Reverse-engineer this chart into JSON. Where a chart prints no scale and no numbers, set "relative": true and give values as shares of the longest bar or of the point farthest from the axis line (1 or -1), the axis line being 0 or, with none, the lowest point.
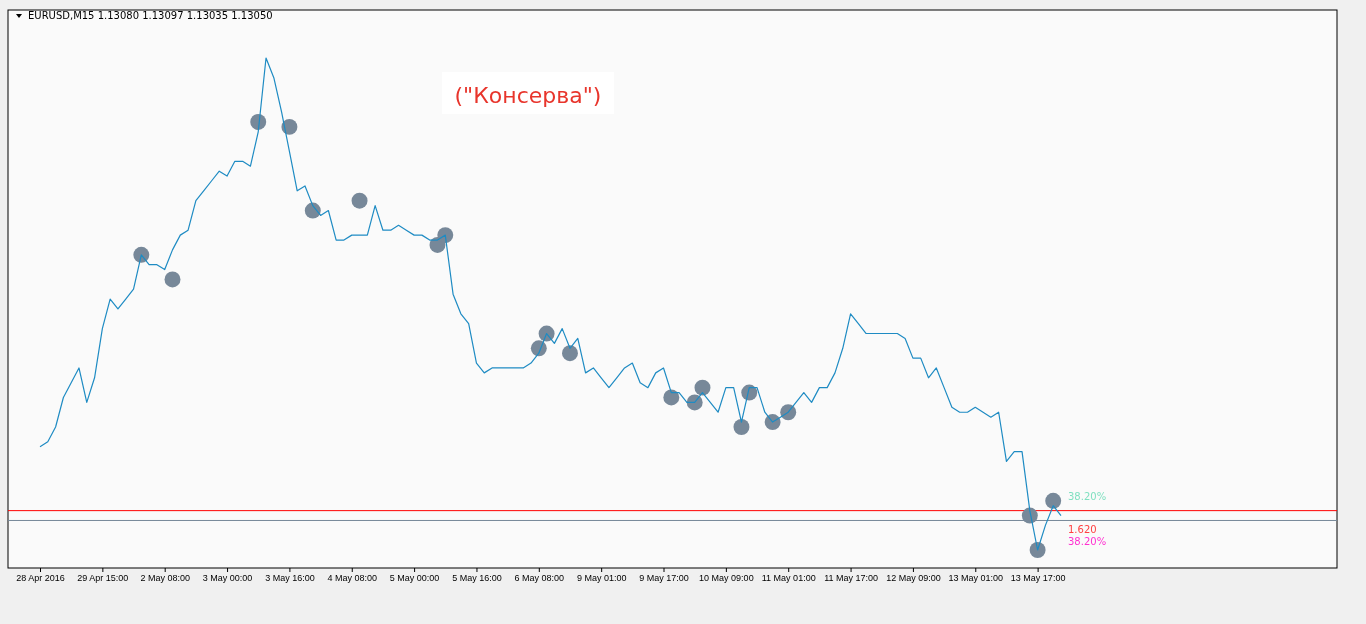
{
  "chart_data": {
    "type": "line",
    "title": "EURUSD,M15  1.13080 1.13097 1.13035 1.13050",
    "relative": true,
    "grid": false,
    "line_style": "solid",
    "marker": "none",
    "categories": [
      "28 Apr 2016",
      null,
      null,
      null,
      null,
      null,
      null,
      null,
      "29 Apr 15:00",
      null,
      null,
      null,
      null,
      null,
      null,
      null,
      "2 May 08:00",
      null,
      null,
      null,
      null,
      null,
      null,
      null,
      "3 May 00:00",
      null,
      null,
      null,
      null,
      null,
      null,
      null,
      "3 May 16:00",
      null,
      null,
      null,
      null,
      null,
      null,
      null,
      "4 May 08:00",
      null,
      null,
      null,
      null,
      null,
      null,
      null,
      "5 May 00:00",
      null,
      null,
      null,
      null,
      null,
      null,
      null,
      "5 May 16:00",
      null,
      null,
      null,
      null,
      null,
      null,
      null,
      "6 May 08:00",
      null,
      null,
      null,
      null,
      null,
      null,
      null,
      "9 May 01:00",
      null,
      null,
      null,
      null,
      null,
      null,
      null,
      "9 May 17:00",
      null,
      null,
      null,
      null,
      null,
      null,
      null,
      "10 May 09:00",
      null,
      null,
      null,
      null,
      null,
      null,
      null,
      "11 May 01:00",
      null,
      null,
      null,
      null,
      null,
      null,
      null,
      "11 May 17:00",
      null,
      null,
      null,
      null,
      null,
      null,
      null,
      "12 May 09:00",
      null,
      null,
      null,
      null,
      null,
      null,
      null,
      "13 May 01:00",
      null,
      null,
      null,
      null,
      null,
      null,
      null,
      "13 May 17:00",
      null,
      null,
      null
    ],
    "series": [
      {
        "color": "#1e8bc3",
        "values": [
          0.21,
          0.22,
          0.25,
          0.31,
          0.34,
          0.37,
          0.3,
          0.35,
          0.45,
          0.51,
          0.49,
          0.51,
          0.53,
          0.6,
          0.58,
          0.58,
          0.57,
          0.61,
          0.64,
          0.65,
          0.71,
          0.73,
          0.75,
          0.77,
          0.76,
          0.79,
          0.79,
          0.78,
          0.85,
          1.0,
          0.96,
          0.89,
          0.81,
          0.73,
          0.74,
          0.7,
          0.68,
          0.69,
          0.63,
          0.63,
          0.64,
          0.64,
          0.64,
          0.7,
          0.65,
          0.65,
          0.66,
          0.65,
          0.64,
          0.64,
          0.63,
          0.63,
          0.64,
          0.52,
          0.48,
          0.46,
          0.38,
          0.36,
          0.37,
          0.37,
          0.37,
          0.37,
          0.37,
          0.38,
          0.4,
          0.44,
          0.42,
          0.45,
          0.41,
          0.43,
          0.36,
          0.37,
          0.35,
          0.33,
          0.35,
          0.37,
          0.38,
          0.34,
          0.33,
          0.36,
          0.37,
          0.32,
          0.32,
          0.3,
          0.3,
          0.32,
          0.3,
          0.28,
          0.33,
          0.33,
          0.26,
          0.33,
          0.33,
          0.28,
          0.26,
          0.27,
          0.28,
          0.3,
          0.32,
          0.3,
          0.33,
          0.33,
          0.36,
          0.41,
          0.48,
          0.46,
          0.44,
          0.44,
          0.44,
          0.44,
          0.44,
          0.43,
          0.39,
          0.39,
          0.35,
          0.37,
          0.33,
          0.29,
          0.28,
          0.28,
          0.29,
          0.28,
          0.27,
          0.28,
          0.18,
          0.2,
          0.2,
          0.08,
          0.0,
          0.05,
          0.09,
          0.07
        ]
      },
      {
        "type": "scatter",
        "color": "#778899",
        "marker": "circle",
        "values": [
          null,
          null,
          null,
          null,
          null,
          null,
          null,
          null,
          null,
          null,
          null,
          null,
          null,
          0.6,
          null,
          null,
          null,
          0.55,
          null,
          null,
          null,
          null,
          null,
          null,
          null,
          null,
          null,
          null,
          0.87,
          null,
          null,
          null,
          0.86,
          null,
          null,
          0.69,
          null,
          null,
          null,
          null,
          null,
          0.71,
          null,
          null,
          null,
          null,
          null,
          null,
          null,
          null,
          null,
          0.62,
          0.64,
          null,
          null,
          null,
          null,
          null,
          null,
          null,
          null,
          null,
          null,
          null,
          0.41,
          0.44,
          null,
          null,
          0.4,
          null,
          null,
          null,
          null,
          null,
          null,
          null,
          null,
          null,
          null,
          null,
          null,
          0.31,
          null,
          null,
          0.3,
          0.33,
          null,
          null,
          null,
          null,
          0.25,
          0.32,
          null,
          null,
          0.26,
          null,
          0.28,
          null,
          null,
          null,
          null,
          null,
          null,
          null,
          null,
          null,
          null,
          null,
          null,
          null,
          null,
          null,
          null,
          null,
          null,
          null,
          null,
          null,
          null,
          null,
          null,
          null,
          null,
          null,
          null,
          null,
          null,
          0.07,
          0.0,
          null,
          0.1,
          null
        ]
      }
    ],
    "ref_lines": [
      {
        "axis": "y",
        "value": 0.08,
        "color": "#ff0000"
      },
      {
        "axis": "y",
        "value": 0.06,
        "color": "#778899"
      }
    ],
    "annotations": [
      "(\"Консерва\")",
      "38.20%",
      "1.620",
      "38.20%"
    ]
  }
}
